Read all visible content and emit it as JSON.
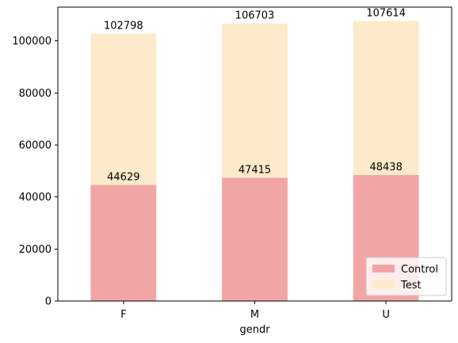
{
  "chart_data": {
    "type": "bar",
    "stacked": true,
    "categories": [
      "F",
      "M",
      "U"
    ],
    "series": [
      {
        "name": "Control",
        "values": [
          44629,
          47415,
          48438
        ],
        "color": "#f2a5a5"
      },
      {
        "name": "Test",
        "values": [
          58169,
          59288,
          59176
        ],
        "color": "#fdeaca"
      }
    ],
    "labels": {
      "Control": [
        "44629",
        "47415",
        "48438"
      ],
      "Test": [
        "102798",
        "106703",
        "107614"
      ]
    },
    "title": "",
    "xlabel": "gendr",
    "ylabel": "",
    "ylim": [
      0,
      113000
    ],
    "yticks": [
      0,
      20000,
      40000,
      60000,
      80000,
      100000
    ],
    "ytick_labels": [
      "0",
      "20000",
      "40000",
      "60000",
      "80000",
      "100000"
    ],
    "grid": false,
    "legend_position": "lower-right"
  }
}
